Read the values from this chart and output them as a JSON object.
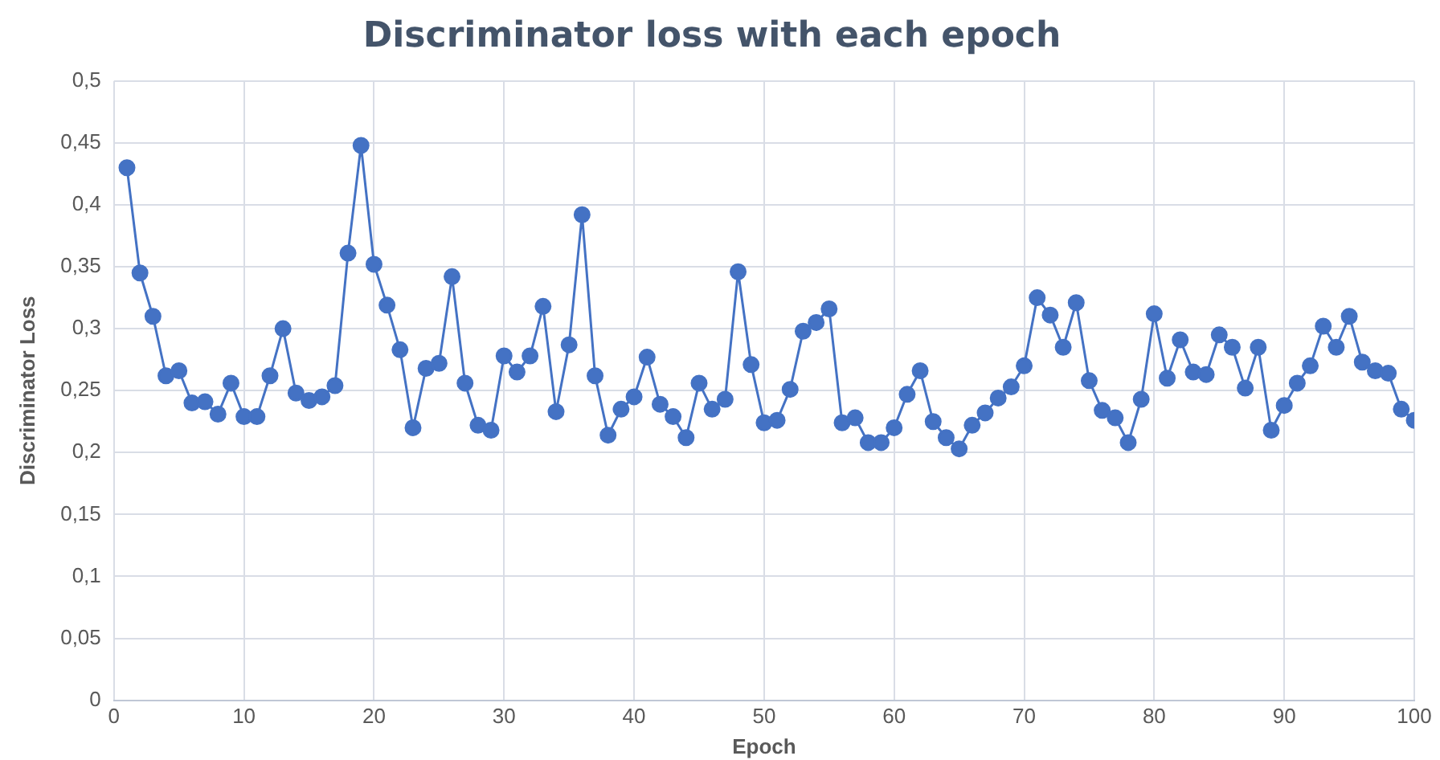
{
  "chart_data": {
    "type": "line",
    "title": "Discriminator loss with each epoch",
    "xlabel": "Epoch",
    "ylabel": "Discriminator Loss",
    "x": [
      1,
      2,
      3,
      4,
      5,
      6,
      7,
      8,
      9,
      10,
      11,
      12,
      13,
      14,
      15,
      16,
      17,
      18,
      19,
      20,
      21,
      22,
      23,
      24,
      25,
      26,
      27,
      28,
      29,
      30,
      31,
      32,
      33,
      34,
      35,
      36,
      37,
      38,
      39,
      40,
      41,
      42,
      43,
      44,
      45,
      46,
      47,
      48,
      49,
      50,
      51,
      52,
      53,
      54,
      55,
      56,
      57,
      58,
      59,
      60,
      61,
      62,
      63,
      64,
      65,
      66,
      67,
      68,
      69,
      70,
      71,
      72,
      73,
      74,
      75,
      76,
      77,
      78,
      79,
      80,
      81,
      82,
      83,
      84,
      85,
      86,
      87,
      88,
      89,
      90,
      91,
      92,
      93,
      94,
      95,
      96,
      97,
      98,
      99,
      100
    ],
    "series": [
      {
        "color": "#4472c4",
        "values": [
          0.43,
          0.345,
          0.31,
          0.262,
          0.266,
          0.24,
          0.241,
          0.231,
          0.256,
          0.229,
          0.229,
          0.262,
          0.3,
          0.248,
          0.242,
          0.245,
          0.254,
          0.361,
          0.448,
          0.352,
          0.319,
          0.283,
          0.22,
          0.268,
          0.272,
          0.342,
          0.256,
          0.222,
          0.218,
          0.278,
          0.265,
          0.278,
          0.318,
          0.233,
          0.287,
          0.392,
          0.262,
          0.214,
          0.235,
          0.245,
          0.277,
          0.239,
          0.229,
          0.212,
          0.256,
          0.235,
          0.243,
          0.346,
          0.271,
          0.224,
          0.226,
          0.251,
          0.298,
          0.305,
          0.316,
          0.224,
          0.228,
          0.208,
          0.208,
          0.22,
          0.247,
          0.266,
          0.225,
          0.212,
          0.203,
          0.222,
          0.232,
          0.244,
          0.253,
          0.27,
          0.325,
          0.311,
          0.285,
          0.321,
          0.258,
          0.234,
          0.228,
          0.208,
          0.243,
          0.312,
          0.26,
          0.291,
          0.265,
          0.263,
          0.295,
          0.285,
          0.252,
          0.285,
          0.218,
          0.238,
          0.256,
          0.27,
          0.302,
          0.285,
          0.31,
          0.273,
          0.266,
          0.264,
          0.235,
          0.226
        ]
      }
    ],
    "xlim": [
      0,
      100
    ],
    "xticks": [
      0,
      10,
      20,
      30,
      40,
      50,
      60,
      70,
      80,
      90,
      100
    ],
    "ylim": [
      0,
      0.5
    ],
    "yticks": [
      0,
      {
        "value": 0.05,
        "label": "0,05"
      },
      {
        "value": 0.1,
        "label": "0,1"
      },
      {
        "value": 0.15,
        "label": "0,15"
      },
      {
        "value": 0.2,
        "label": "0,2"
      },
      {
        "value": 0.25,
        "label": "0,25"
      },
      {
        "value": 0.3,
        "label": "0,3"
      },
      {
        "value": 0.35,
        "label": "0,35"
      },
      {
        "value": 0.4,
        "label": "0,4"
      },
      {
        "value": 0.45,
        "label": "0,45"
      },
      {
        "value": 0.5,
        "label": "0,5"
      }
    ],
    "grid": true,
    "marker": "circle",
    "line_style": "solid",
    "legend": false
  }
}
